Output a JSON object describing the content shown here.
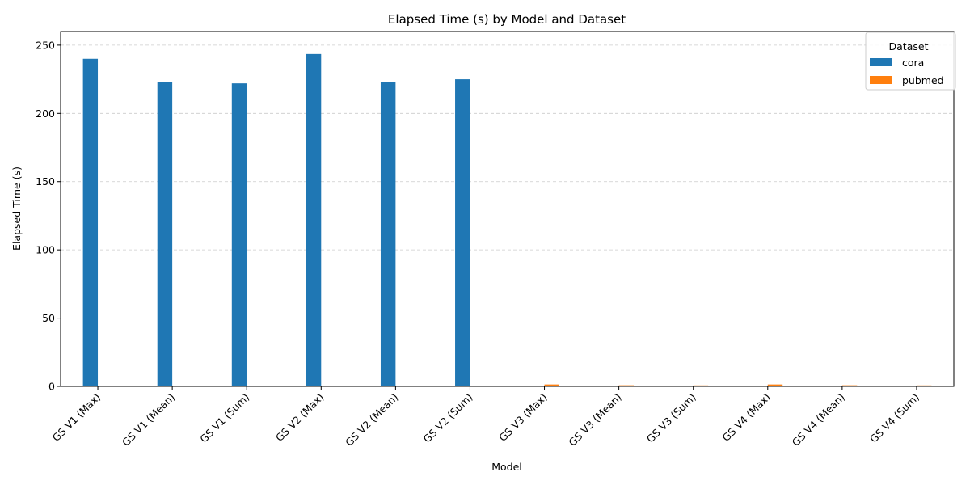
{
  "chart_data": {
    "type": "bar",
    "title": "Elapsed Time (s) by Model and Dataset",
    "xlabel": "Model",
    "ylabel": "Elapsed Time (s)",
    "ylim": [
      0,
      260
    ],
    "yticks": [
      0,
      50,
      100,
      150,
      200,
      250
    ],
    "grid": "y-dashed",
    "categories": [
      "GS V1 (Max)",
      "GS V1 (Mean)",
      "GS V1 (Sum)",
      "GS V2 (Max)",
      "GS V2 (Mean)",
      "GS V2 (Sum)",
      "GS V3 (Max)",
      "GS V3 (Mean)",
      "GS V3 (Sum)",
      "GS V4 (Max)",
      "GS V4 (Mean)",
      "GS V4 (Sum)"
    ],
    "legend": {
      "title": "Dataset",
      "position": "top-right"
    },
    "series": [
      {
        "name": "cora",
        "color": "#1f77b4",
        "values": [
          240,
          223,
          222,
          243.5,
          223,
          225,
          0.5,
          0.5,
          0.5,
          0.5,
          0.5,
          0.5
        ]
      },
      {
        "name": "pubmed",
        "color": "#ff7f0e",
        "values": [
          0,
          0,
          0,
          0,
          0,
          0,
          1.4,
          0.8,
          0.7,
          1.4,
          0.8,
          0.7
        ]
      }
    ]
  }
}
